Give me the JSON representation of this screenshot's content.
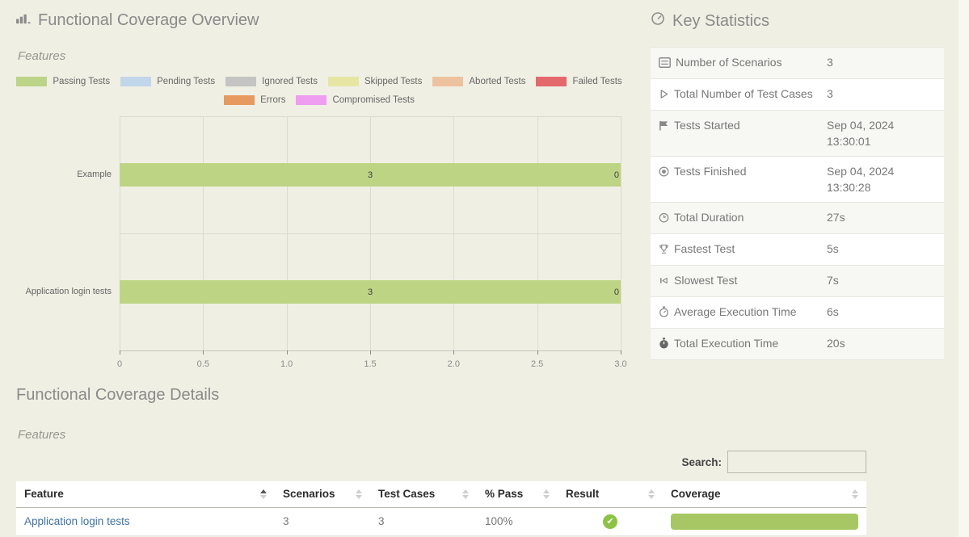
{
  "page": {
    "background": "#f0efe4"
  },
  "colors": {
    "passing_bar": "#bed485",
    "coverage_bar": "#a6c763",
    "result_pass": "#8cc346",
    "link": "#3f72a4",
    "heading": "#8a8a8a"
  },
  "overview": {
    "icon": "bar-chart-icon",
    "title": "Functional Coverage Overview",
    "subtitle": "Features",
    "legend": [
      {
        "label": "Passing Tests",
        "color": "#bcd487"
      },
      {
        "label": "Pending Tests",
        "color": "#c2d6e9"
      },
      {
        "label": "Ignored Tests",
        "color": "#c4c4c4"
      },
      {
        "label": "Skipped Tests",
        "color": "#e7e5a2"
      },
      {
        "label": "Aborted Tests",
        "color": "#edc29e"
      },
      {
        "label": "Failed Tests",
        "color": "#e4696d"
      },
      {
        "label": "Errors",
        "color": "#e79a5f"
      },
      {
        "label": "Compromised Tests",
        "color": "#ee9df0"
      }
    ],
    "legend_row_split": 6
  },
  "chart_data": {
    "type": "bar",
    "orientation": "horizontal",
    "title": "Functional Coverage Overview",
    "group_label": "Features",
    "categories": [
      "Example",
      "Application login tests"
    ],
    "series": [
      {
        "name": "Passing Tests",
        "color": "#bed485",
        "values": [
          3,
          3
        ]
      }
    ],
    "bar_value_labels": [
      "3",
      "3"
    ],
    "bar_end_labels": [
      "0",
      "0"
    ],
    "xlim": [
      0,
      3
    ],
    "x_ticks": [
      "0",
      "0.5",
      "1.0",
      "1.5",
      "2.0",
      "2.5",
      "3.0"
    ],
    "grid": true,
    "legend_position": "top"
  },
  "key_statistics": {
    "icon": "gauge-icon",
    "title": "Key Statistics",
    "rows": [
      {
        "icon": "list-card-icon",
        "label": "Number of Scenarios",
        "value": "3"
      },
      {
        "icon": "play-icon",
        "label": "Total Number of Test Cases",
        "value": "3"
      },
      {
        "icon": "flag-icon",
        "label": "Tests Started",
        "value": "Sep 04, 2024 13:30:01"
      },
      {
        "icon": "record-circle-icon",
        "label": "Tests Finished",
        "value": "Sep 04, 2024 13:30:28"
      },
      {
        "icon": "clock-icon",
        "label": "Total Duration",
        "value": "27s"
      },
      {
        "icon": "trophy-icon",
        "label": "Fastest Test",
        "value": "5s"
      },
      {
        "icon": "skip-start-icon",
        "label": "Slowest Test",
        "value": "7s"
      },
      {
        "icon": "stopwatch-icon",
        "label": "Average Execution Time",
        "value": "6s"
      },
      {
        "icon": "stopwatch-filled-icon",
        "label": "Total Execution Time",
        "value": "20s"
      }
    ]
  },
  "details": {
    "title": "Functional Coverage Details",
    "subtitle": "Features",
    "search_label": "Search:",
    "search_value": "",
    "table": {
      "columns": [
        {
          "label": "Feature",
          "sort": "asc"
        },
        {
          "label": "Scenarios",
          "sort": "none"
        },
        {
          "label": "Test Cases",
          "sort": "none"
        },
        {
          "label": "% Pass",
          "sort": "none"
        },
        {
          "label": "Result",
          "sort": "none"
        },
        {
          "label": "Coverage",
          "sort": "none"
        }
      ],
      "rows": [
        {
          "feature": "Application login tests",
          "scenarios": "3",
          "test_cases": "3",
          "pct_pass": "100%",
          "result": "passed",
          "coverage_percent": 100
        }
      ]
    }
  }
}
